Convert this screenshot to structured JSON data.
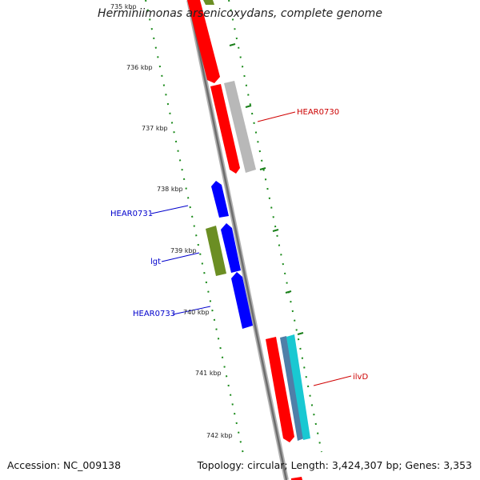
{
  "title": "Herminiimonas arsenicoxydans, complete genome",
  "ticks": [
    "735 kbp",
    "736 kbp",
    "737 kbp",
    "738 kbp",
    "739 kbp",
    "740 kbp",
    "741 kbp",
    "742 kbp"
  ],
  "genes": {
    "hear0730": "HEAR0730",
    "hear0731": "HEAR0731",
    "lgt": "lgt",
    "hear0733": "HEAR0733",
    "ilvd": "ilvD"
  },
  "footer": {
    "accession": "Accession: NC_009138",
    "summary": "Topology: circular; Length: 3,424,307 bp; Genes: 3,353"
  },
  "colors": {
    "ruler": "#1a8a1a",
    "gene_red": "#ff0000",
    "gene_blue": "#0000ff",
    "gene_olive": "#6b8e23",
    "gene_grey": "#b8b8b8",
    "gene_cyan": "#19c8d2",
    "gene_steelblue": "#4f7fa8",
    "backbone": "#6e6e6e"
  }
}
